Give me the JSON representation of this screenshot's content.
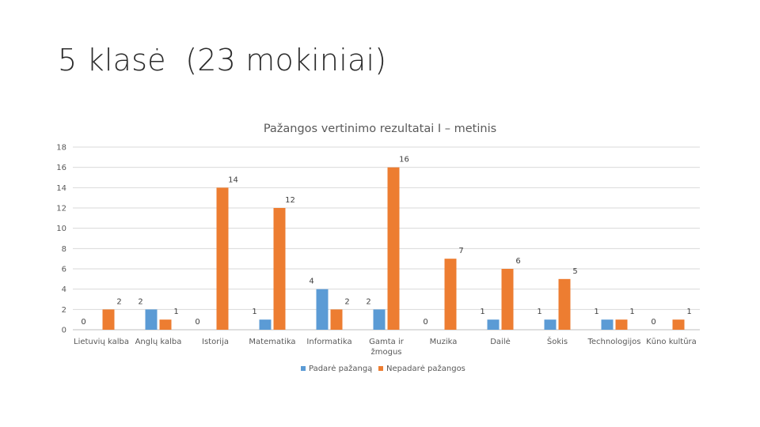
{
  "slide": {
    "title": "5 klasė  (23 mokiniai)"
  },
  "chart_data": {
    "type": "bar",
    "title": "Pažangos vertinimo rezultatai I – metinis",
    "ylim": [
      0,
      18
    ],
    "yticks": [
      0,
      2,
      4,
      6,
      8,
      10,
      12,
      14,
      16,
      18
    ],
    "grid": true,
    "legend_position": "bottom",
    "categories": [
      "Lietuvių kalba",
      "Anglų kalba",
      "Istorija",
      "Matematika",
      "Informatika",
      "Gamta ir žmogus",
      "Muzika",
      "Dailė",
      "Šokis",
      "Technologijos",
      "Kūno kultūra"
    ],
    "series": [
      {
        "name": "Padarė pažangą",
        "color": "#5b9bd5",
        "values": [
          0,
          2,
          0,
          1,
          4,
          2,
          0,
          1,
          1,
          1,
          0
        ]
      },
      {
        "name": "Nepadarė pažangos",
        "color": "#ed7d31",
        "values": [
          2,
          1,
          14,
          12,
          2,
          16,
          7,
          6,
          5,
          1,
          1
        ]
      }
    ]
  }
}
